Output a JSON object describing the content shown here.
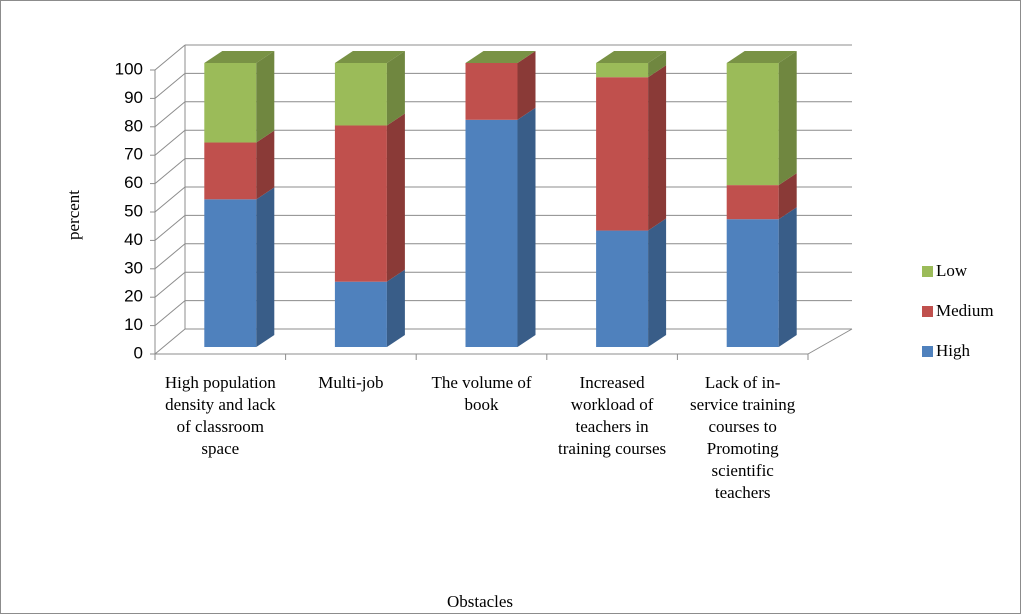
{
  "chart_data": {
    "type": "bar3d_stacked",
    "categories": [
      "High population density and lack of classroom space",
      "Multi-job",
      "The volume of book",
      "Increased workload of teachers in training courses",
      "Lack of in-service training courses to Promoting scientific teachers"
    ],
    "series": [
      {
        "name": "High",
        "color": "#4f81bd",
        "values": [
          52,
          23,
          80,
          41,
          45
        ]
      },
      {
        "name": "Medium",
        "color": "#c0504d",
        "values": [
          20,
          55,
          20,
          54,
          12
        ]
      },
      {
        "name": "Low",
        "color": "#9bbb59",
        "values": [
          28,
          22,
          0,
          5,
          43
        ]
      }
    ],
    "ylim": [
      0,
      100
    ],
    "yticks": [
      0,
      10,
      20,
      30,
      40,
      50,
      60,
      70,
      80,
      90,
      100
    ],
    "y_label": "percent",
    "x_label": "Obstacles",
    "grid": true,
    "legend": "right"
  }
}
